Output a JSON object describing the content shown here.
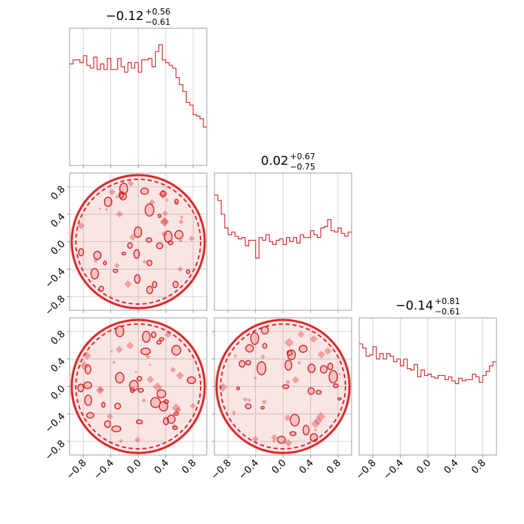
{
  "chart_data": {
    "type": "corner",
    "color": "#d62728",
    "grid": true,
    "tick_values": [
      -0.8,
      -0.4,
      0.0,
      0.4,
      0.8
    ],
    "tick_labels": [
      "−0.8",
      "−0.4",
      "0.0",
      "0.4",
      "0.8"
    ],
    "axis_range": [
      -1.0,
      1.0
    ],
    "parameters": [
      {
        "median": "−0.12",
        "plus": "+0.56",
        "minus": "−0.61"
      },
      {
        "median": "0.02",
        "plus": "+0.67",
        "minus": "−0.75"
      },
      {
        "median": "−0.14",
        "plus": "+0.81",
        "minus": "−0.61"
      }
    ],
    "histograms": [
      {
        "bins": 40,
        "range": [
          -1.0,
          1.0
        ],
        "density": [
          0.74,
          0.77,
          0.77,
          0.75,
          0.8,
          0.73,
          0.71,
          0.79,
          0.7,
          0.74,
          0.7,
          0.78,
          0.7,
          0.7,
          0.78,
          0.72,
          0.68,
          0.75,
          0.71,
          0.75,
          0.68,
          0.77,
          0.77,
          0.78,
          0.72,
          0.83,
          0.88,
          0.77,
          0.75,
          0.73,
          0.71,
          0.64,
          0.59,
          0.54,
          0.46,
          0.44,
          0.37,
          0.36,
          0.34,
          0.28
        ]
      },
      {
        "bins": 40,
        "range": [
          -1.0,
          1.0
        ],
        "density": [
          0.84,
          0.8,
          0.7,
          0.6,
          0.55,
          0.57,
          0.54,
          0.52,
          0.53,
          0.47,
          0.51,
          0.51,
          0.38,
          0.53,
          0.51,
          0.55,
          0.5,
          0.48,
          0.51,
          0.52,
          0.48,
          0.53,
          0.5,
          0.53,
          0.49,
          0.55,
          0.53,
          0.53,
          0.58,
          0.55,
          0.53,
          0.6,
          0.61,
          0.66,
          0.58,
          0.57,
          0.6,
          0.56,
          0.54,
          0.57
        ]
      },
      {
        "bins": 40,
        "range": [
          -1.0,
          1.0
        ],
        "density": [
          0.81,
          0.78,
          0.72,
          0.73,
          0.79,
          0.7,
          0.74,
          0.7,
          0.74,
          0.72,
          0.68,
          0.7,
          0.65,
          0.7,
          0.63,
          0.62,
          0.66,
          0.57,
          0.62,
          0.58,
          0.59,
          0.57,
          0.56,
          0.58,
          0.58,
          0.55,
          0.57,
          0.54,
          0.52,
          0.56,
          0.54,
          0.55,
          0.55,
          0.59,
          0.57,
          0.53,
          0.58,
          0.61,
          0.65,
          0.68
        ]
      }
    ],
    "pairs": [
      {
        "x_param": 0,
        "y_param": 1,
        "shape": "disc",
        "center": [
          0.0,
          0.0
        ],
        "radius": 1.0
      },
      {
        "x_param": 0,
        "y_param": 2,
        "shape": "disc",
        "center": [
          0.0,
          0.0
        ],
        "radius": 1.0
      },
      {
        "x_param": 1,
        "y_param": 2,
        "shape": "disc",
        "center": [
          0.0,
          0.0
        ],
        "radius": 1.0
      }
    ]
  }
}
